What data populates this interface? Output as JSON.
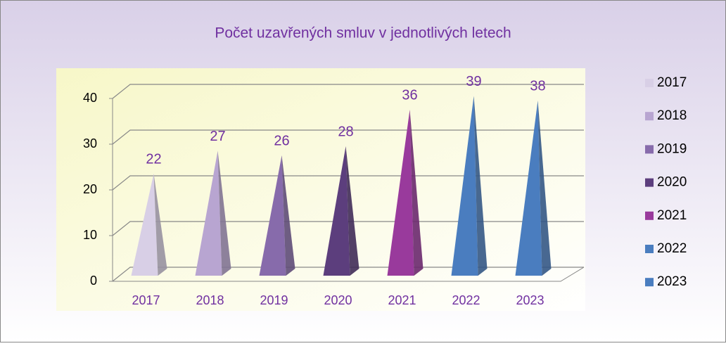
{
  "chart_data": {
    "type": "pyramid",
    "title": "Počet uzavřených smluv v jednotlivých letech",
    "categories": [
      "2017",
      "2018",
      "2019",
      "2020",
      "2021",
      "2022",
      "2023"
    ],
    "values": [
      22,
      27,
      26,
      28,
      36,
      39,
      38
    ],
    "colors": [
      "#d8cfe6",
      "#b8a5d1",
      "#876bab",
      "#5c3e7d",
      "#993a9c",
      "#4a7dbf",
      "#4a7dbf"
    ],
    "ylim": [
      0,
      40
    ],
    "yticks": [
      0,
      10,
      20,
      30,
      40
    ],
    "grid": true,
    "legend": "right"
  }
}
